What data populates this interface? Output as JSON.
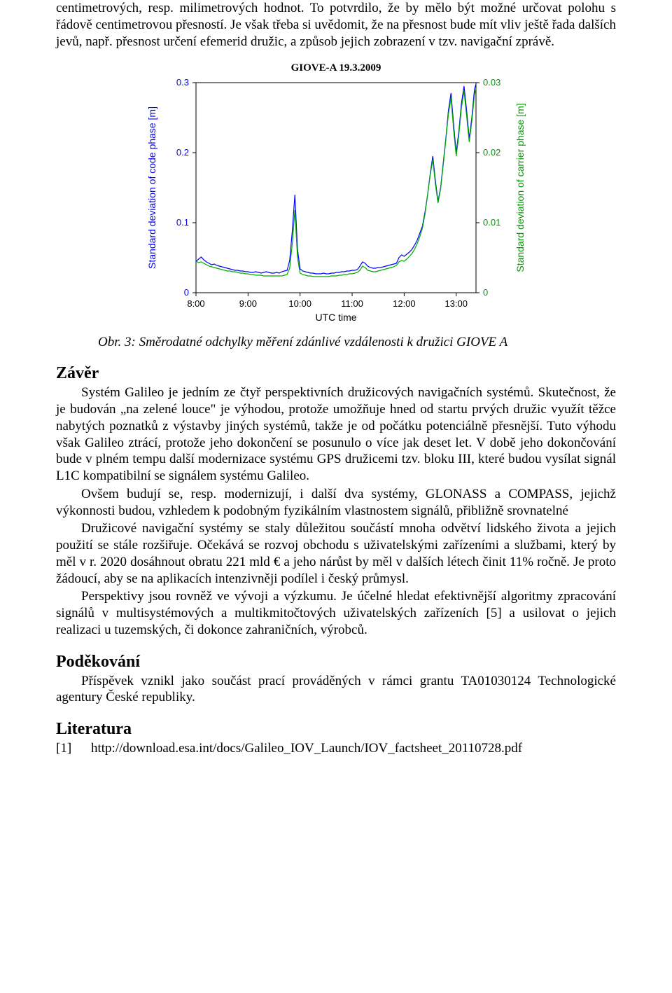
{
  "paragraphs": {
    "intro1": "centimetrových, resp. milimetrových hodnot. To potvrdilo, že by mělo být možné určovat polohu s řádově centimetrovou přesností. Je však třeba si uvědomit, že na přesnost bude mít vliv ještě řada dalších jevů, např. přesnost určení efemerid družic, a způsob jejich zobrazení v tzv. navigační zprávě.",
    "caption": "Obr. 3: Směrodatné odchylky měření zdánlivé vzdálenosti k družici GIOVE A",
    "zaver1": "Systém Galileo je jedním ze čtyř perspektivních družicových navigačních systémů. Skutečnost, že je budován „na zelené louce\" je výhodou, protože umožňuje hned od startu prvých družic využít těžce nabytých poznatků z výstavby jiných systémů, takže je od počátku potenciálně přesnější. Tuto výhodu však Galileo ztrácí, protože jeho dokončení se posunulo o více jak deset let. V době jeho dokončování bude v plném tempu další modernizace systému GPS družicemi tzv. bloku III, které budou vysílat signál L1C kompatibilní se signálem systému Galileo.",
    "zaver2": "Ovšem budují se, resp. modernizují, i další dva systémy, GLONASS a COMPASS, jejichž výkonnosti budou, vzhledem k podobným fyzikálním vlastnostem signálů, přibližně srovnatelné",
    "zaver3": "Družicové navigační systémy se staly důležitou součástí mnoha odvětví lidského života a jejich použití se stále rozšiřuje. Očekává se rozvoj obchodu s uživatelskými zařízeními a službami, který by měl v r. 2020 dosáhnout obratu 221 mld € a jeho nárůst by měl v dalších létech činit 11% ročně. Je proto žádoucí, aby se na aplikacích intenzivněji podílel i český průmysl.",
    "zaver4": "Perspektivy jsou rovněž ve vývoji a výzkumu. Je účelné hledat efektivnější algoritmy zpracování signálů v multisystémových a multikmitočtových uživatelských zařízeních [5] a usilovat o jejich realizaci u tuzemských, či dokonce zahraničních, výrobců.",
    "podek1": "Příspěvek vznikl jako součást prací prováděných v rámci grantu TA01030124 Technologické agentury České republiky."
  },
  "headings": {
    "zaver": "Závěr",
    "podekovani": "Poděkování",
    "literatura": "Literatura"
  },
  "reference": {
    "num": "[1]",
    "url": "http://download.esa.int/docs/Galileo_IOV_Launch/IOV_factsheet_20110728.pdf"
  },
  "chart": {
    "type": "line",
    "title": "GIOVE-A 19.3.2009",
    "title_fontsize": 15,
    "title_color": "#000000",
    "background_color": "#ffffff",
    "plot_border_color": "#000000",
    "left_axis": {
      "label": "Standard deviation of code phase [m]",
      "label_color": "#0000ff",
      "label_fontsize": 14,
      "ylim": [
        0,
        0.3
      ],
      "ticks": [
        0,
        0.1,
        0.2,
        0.3
      ],
      "tick_color": "#0000ff"
    },
    "right_axis": {
      "label": "Standard deviation of carrier phase [m]",
      "label_color": "#009900",
      "label_fontsize": 14,
      "ylim": [
        0,
        0.03
      ],
      "ticks": [
        0,
        0.01,
        0.02,
        0.03
      ],
      "tick_color": "#009900"
    },
    "x_axis": {
      "label": "UTC time",
      "label_fontsize": 14,
      "ticks": [
        "8:00",
        "9:00",
        "10:00",
        "11:00",
        "12:00",
        "13:00"
      ],
      "tick_positions": [
        8,
        9,
        10,
        11,
        12,
        13
      ]
    },
    "series_blue": {
      "name": "code phase",
      "color": "#0000ff",
      "line_width": 1.2,
      "x": [
        8.0,
        8.05,
        8.1,
        8.15,
        8.2,
        8.25,
        8.3,
        8.35,
        8.4,
        8.45,
        8.5,
        8.55,
        8.6,
        8.65,
        8.7,
        8.75,
        8.8,
        8.85,
        8.9,
        8.95,
        9.0,
        9.05,
        9.1,
        9.15,
        9.2,
        9.25,
        9.3,
        9.35,
        9.4,
        9.45,
        9.5,
        9.55,
        9.6,
        9.65,
        9.7,
        9.75,
        9.8,
        9.85,
        9.9,
        9.95,
        10.0,
        10.05,
        10.1,
        10.15,
        10.2,
        10.25,
        10.3,
        10.35,
        10.4,
        10.45,
        10.5,
        10.55,
        10.6,
        10.65,
        10.7,
        10.75,
        10.8,
        10.85,
        10.9,
        10.95,
        11.0,
        11.05,
        11.1,
        11.15,
        11.2,
        11.25,
        11.3,
        11.35,
        11.4,
        11.45,
        11.5,
        11.55,
        11.6,
        11.65,
        11.7,
        11.75,
        11.8,
        11.85,
        11.9,
        11.95,
        12.0,
        12.05,
        12.1,
        12.15,
        12.2,
        12.25,
        12.3,
        12.35,
        12.4,
        12.45,
        12.5,
        12.55,
        12.6,
        12.65,
        12.7,
        12.75,
        12.8,
        12.85,
        12.9,
        12.95,
        13.0,
        13.05,
        13.1,
        13.15,
        13.2,
        13.25,
        13.3,
        13.35,
        13.38
      ],
      "y": [
        0.045,
        0.048,
        0.051,
        0.047,
        0.044,
        0.042,
        0.04,
        0.041,
        0.039,
        0.038,
        0.037,
        0.036,
        0.035,
        0.034,
        0.033,
        0.032,
        0.032,
        0.031,
        0.031,
        0.03,
        0.03,
        0.029,
        0.029,
        0.03,
        0.029,
        0.028,
        0.029,
        0.03,
        0.029,
        0.028,
        0.028,
        0.029,
        0.028,
        0.03,
        0.031,
        0.032,
        0.046,
        0.088,
        0.14,
        0.062,
        0.034,
        0.031,
        0.03,
        0.029,
        0.028,
        0.028,
        0.027,
        0.027,
        0.027,
        0.028,
        0.027,
        0.027,
        0.028,
        0.028,
        0.029,
        0.029,
        0.03,
        0.03,
        0.031,
        0.031,
        0.032,
        0.032,
        0.033,
        0.038,
        0.044,
        0.042,
        0.038,
        0.036,
        0.035,
        0.035,
        0.036,
        0.036,
        0.037,
        0.038,
        0.039,
        0.04,
        0.041,
        0.042,
        0.05,
        0.054,
        0.052,
        0.055,
        0.058,
        0.062,
        0.068,
        0.075,
        0.085,
        0.095,
        0.115,
        0.14,
        0.17,
        0.195,
        0.16,
        0.13,
        0.15,
        0.185,
        0.22,
        0.26,
        0.285,
        0.24,
        0.2,
        0.23,
        0.27,
        0.295,
        0.26,
        0.22,
        0.25,
        0.29,
        0.298
      ]
    },
    "series_green": {
      "name": "carrier phase",
      "color": "#00aa00",
      "line_width": 1.2,
      "x": [
        8.0,
        8.05,
        8.1,
        8.15,
        8.2,
        8.25,
        8.3,
        8.35,
        8.4,
        8.45,
        8.5,
        8.55,
        8.6,
        8.65,
        8.7,
        8.75,
        8.8,
        8.85,
        8.9,
        8.95,
        9.0,
        9.05,
        9.1,
        9.15,
        9.2,
        9.25,
        9.3,
        9.35,
        9.4,
        9.45,
        9.5,
        9.55,
        9.6,
        9.65,
        9.7,
        9.75,
        9.8,
        9.85,
        9.9,
        9.95,
        10.0,
        10.05,
        10.1,
        10.15,
        10.2,
        10.25,
        10.3,
        10.35,
        10.4,
        10.45,
        10.5,
        10.55,
        10.6,
        10.65,
        10.7,
        10.75,
        10.8,
        10.85,
        10.9,
        10.95,
        11.0,
        11.05,
        11.1,
        11.15,
        11.2,
        11.25,
        11.3,
        11.35,
        11.4,
        11.45,
        11.5,
        11.55,
        11.6,
        11.65,
        11.7,
        11.75,
        11.8,
        11.85,
        11.9,
        11.95,
        12.0,
        12.05,
        12.1,
        12.15,
        12.2,
        12.25,
        12.3,
        12.35,
        12.4,
        12.45,
        12.5,
        12.55,
        12.6,
        12.65,
        12.7,
        12.75,
        12.8,
        12.85,
        12.9,
        12.95,
        13.0,
        13.05,
        13.1,
        13.15,
        13.2,
        13.25,
        13.3,
        13.35,
        13.38
      ],
      "y": [
        0.0045,
        0.0043,
        0.0044,
        0.0042,
        0.004,
        0.0038,
        0.0037,
        0.0036,
        0.0035,
        0.0034,
        0.0033,
        0.0032,
        0.0031,
        0.0031,
        0.003,
        0.003,
        0.0029,
        0.0028,
        0.0028,
        0.0027,
        0.0027,
        0.0026,
        0.0026,
        0.0025,
        0.0025,
        0.0025,
        0.0024,
        0.0024,
        0.0024,
        0.0024,
        0.0024,
        0.0024,
        0.0024,
        0.0024,
        0.0025,
        0.0026,
        0.0035,
        0.007,
        0.0118,
        0.005,
        0.0028,
        0.0026,
        0.0025,
        0.0024,
        0.0024,
        0.0023,
        0.0023,
        0.0023,
        0.0023,
        0.0023,
        0.0023,
        0.0023,
        0.0024,
        0.0024,
        0.0024,
        0.0025,
        0.0025,
        0.0026,
        0.0026,
        0.0027,
        0.0027,
        0.0028,
        0.0029,
        0.0032,
        0.0038,
        0.0036,
        0.0032,
        0.0031,
        0.003,
        0.003,
        0.0031,
        0.0032,
        0.0033,
        0.0034,
        0.0035,
        0.0036,
        0.0037,
        0.0039,
        0.0044,
        0.0046,
        0.0045,
        0.0048,
        0.0052,
        0.0056,
        0.0062,
        0.007,
        0.008,
        0.0092,
        0.0112,
        0.014,
        0.0168,
        0.019,
        0.0155,
        0.0128,
        0.0148,
        0.0182,
        0.0218,
        0.0255,
        0.0278,
        0.0232,
        0.0195,
        0.0225,
        0.0264,
        0.0288,
        0.0252,
        0.0215,
        0.0245,
        0.0282,
        0.0292
      ]
    }
  }
}
